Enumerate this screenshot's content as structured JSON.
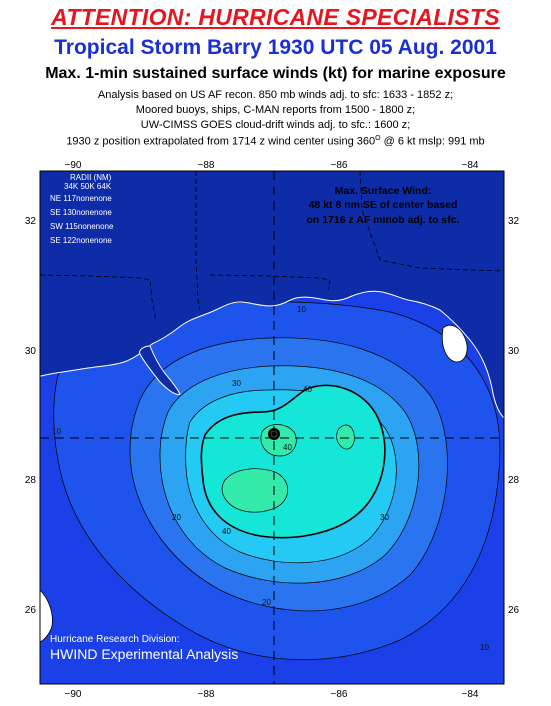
{
  "header": {
    "attention": "ATTENTION: HURRICANE SPECIALISTS",
    "storm_title": "Tropical Storm Barry 1930 UTC 05 Aug. 2001",
    "product": "Max. 1-min sustained surface winds (kt) for marine exposure",
    "note_1": "Analysis based on US AF recon. 850 mb winds adj. to sfc: 1633 - 1852 z;",
    "note_2": "Moored buoys, ships, C-MAN reports from  1500 - 1800 z;",
    "note_3": "UW-CIMSS GOES cloud-drift winds adj. to sfc.: 1600 z;",
    "note_4a": "1930 z position extrapolated from 1714 z wind center using 360",
    "note_4_sup": "O",
    "note_4b": " @ 6 kt  mslp: 991 mb"
  },
  "axes": {
    "lon_labels": [
      "−90",
      "−88",
      "−86",
      "−84"
    ],
    "lat_labels": [
      "32",
      "30",
      "28",
      "26"
    ]
  },
  "radii_table": {
    "header": "RADII (NM)",
    "cols": "34K 50K 64K",
    "rows": [
      "NE 117nonenone",
      "SE 130nonenone",
      "SW 115nonenone",
      "SE 122nonenone"
    ]
  },
  "max_wind": {
    "line1": "Max. Surface Wind:",
    "line2": "48 kt 8 nm SE of center based",
    "line3": "on 1716 z AF minob adj. to sfc."
  },
  "contour_labels": {
    "c10": "10",
    "c20": "20",
    "c30": "30",
    "c40": "40"
  },
  "credits": {
    "line1": "Hurricane Research Division:",
    "line2": "HWIND Experimental Analysis"
  },
  "colors": {
    "background_gulf": "#1c40e8",
    "contour_10": "#1f54ec",
    "contour_20": "#2a74f0",
    "contour_30": "#2ca4f2",
    "contour_35": "#24caf4",
    "contour_40": "#16e6d8",
    "contour_45": "#34eaaa",
    "land_shading": "#0f2ca8"
  }
}
